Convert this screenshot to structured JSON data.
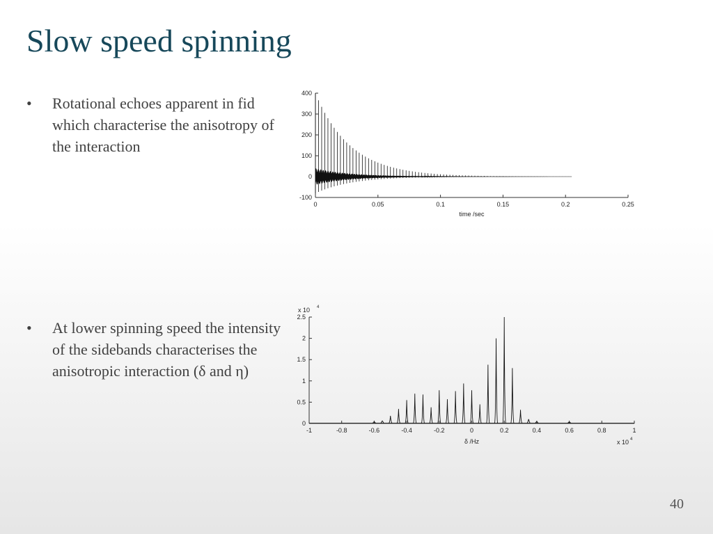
{
  "slide": {
    "title": "Slow speed spinning",
    "bullet_char": "•",
    "bullets": [
      {
        "text": "Rotational echoes apparent in fid which characterise the anisotropy of the interaction"
      },
      {
        "text": "At lower spinning speed the intensity of the sidebands characterises the anisotropic interaction (δ and η)"
      }
    ],
    "slide_number": "40"
  },
  "colors": {
    "title": "#17485a",
    "text": "#404040",
    "line": "#111111"
  },
  "chart_data": [
    {
      "type": "line",
      "title": "",
      "xlabel": "time /sec",
      "ylabel": "",
      "xlim": [
        0,
        0.25
      ],
      "ylim": [
        -100,
        400
      ],
      "x_ticks": [
        0,
        0.05,
        0.1,
        0.15,
        0.2,
        0.25
      ],
      "x_tick_labels": [
        "0",
        "0.05",
        "0.1",
        "0.15",
        "0.2",
        "0.25"
      ],
      "y_ticks": [
        -100,
        0,
        100,
        200,
        300,
        400
      ],
      "y_tick_labels": [
        "-100",
        "0",
        "100",
        "200",
        "300",
        "400"
      ],
      "grid": false,
      "series": [
        {
          "description_free": true,
          "echo_start": 0.0,
          "echo_spacing": 0.0025,
          "signal_end": 0.205,
          "initial_peak": 400,
          "decay_time_constant": 0.028,
          "fast_oscillation_amplitude": 40
        }
      ]
    },
    {
      "type": "line",
      "title": "",
      "xlabel": "δ /Hz",
      "ylabel": "",
      "x_multiplier": "x 10",
      "x_multiplier_exp": "4",
      "y_multiplier": "x 10",
      "y_multiplier_exp": "4",
      "xlim": [
        -1,
        1
      ],
      "ylim": [
        0,
        2.5
      ],
      "x_ticks": [
        -1,
        -0.8,
        -0.6,
        -0.4,
        -0.2,
        0,
        0.2,
        0.4,
        0.6,
        0.8,
        1
      ],
      "x_tick_labels": [
        "-1",
        "-0.8",
        "-0.6",
        "-0.4",
        "-0.2",
        "0",
        "0.2",
        "0.4",
        "0.6",
        "0.8",
        "1"
      ],
      "y_ticks": [
        0,
        0.5,
        1,
        1.5,
        2,
        2.5
      ],
      "y_tick_labels": [
        "0",
        "0.5",
        "1",
        "1.5",
        "2",
        "2.5"
      ],
      "grid": false,
      "peaks_x": [
        -0.6,
        -0.55,
        -0.5,
        -0.45,
        -0.4,
        -0.35,
        -0.3,
        -0.25,
        -0.2,
        -0.15,
        -0.1,
        -0.05,
        0,
        0.05,
        0.1,
        0.15,
        0.2,
        0.25,
        0.3,
        0.35,
        0.4,
        0.6
      ],
      "peaks_y": [
        0.03,
        0.06,
        0.18,
        0.34,
        0.55,
        0.7,
        0.68,
        0.38,
        0.78,
        0.57,
        0.76,
        0.94,
        0.78,
        0.45,
        1.38,
        2.0,
        2.5,
        1.3,
        0.32,
        0.1,
        0.04,
        0.02
      ]
    }
  ]
}
